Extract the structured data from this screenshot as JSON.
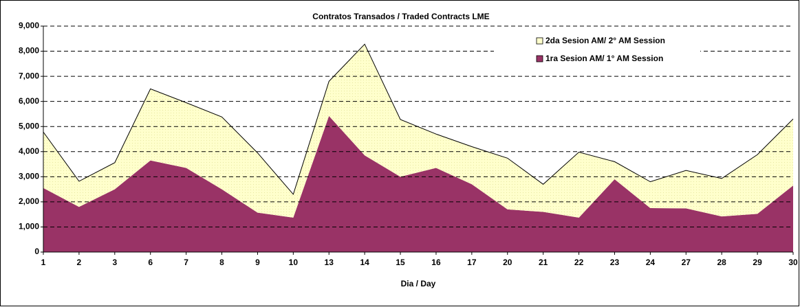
{
  "chart_data": {
    "type": "area",
    "stacked": true,
    "title": "Contratos  Transados / Traded Contracts LME",
    "x_label": "Dia / Day",
    "categories": [
      "1",
      "2",
      "3",
      "6",
      "7",
      "8",
      "9",
      "10",
      "13",
      "14",
      "15",
      "16",
      "17",
      "20",
      "21",
      "22",
      "23",
      "24",
      "27",
      "28",
      "29",
      "30"
    ],
    "series": [
      {
        "name": "1ra Sesion AM/ 1° AM Session",
        "color": "#993366",
        "values": [
          2550,
          1800,
          2500,
          3650,
          3350,
          2500,
          1570,
          1370,
          5420,
          3850,
          3000,
          3350,
          2700,
          1700,
          1600,
          1370,
          2900,
          1750,
          1740,
          1420,
          1520,
          2650
        ]
      },
      {
        "name": "2da Sesion AM/ 2° AM Session",
        "color": "#ffffcc",
        "values": [
          2230,
          1020,
          1060,
          2850,
          2600,
          2880,
          2380,
          930,
          1380,
          4430,
          2280,
          1350,
          1500,
          2040,
          1100,
          2610,
          700,
          1050,
          1510,
          1510,
          2360,
          2650
        ]
      }
    ],
    "ylim": [
      0,
      9000
    ],
    "yticks": [
      0,
      {
        "value": 1000,
        "label": "1,000"
      },
      {
        "value": 2000,
        "label": "2,000"
      },
      {
        "value": 3000,
        "label": "3,000"
      },
      {
        "value": 4000,
        "label": "4,000"
      },
      {
        "value": 5000,
        "label": "5,000"
      },
      {
        "value": 6000,
        "label": "6,000"
      },
      {
        "value": 7000,
        "label": "7,000"
      },
      {
        "value": 8000,
        "label": "8,000"
      },
      {
        "value": 9000,
        "label": "9,000"
      }
    ],
    "grid": true,
    "legend": "top-right"
  }
}
